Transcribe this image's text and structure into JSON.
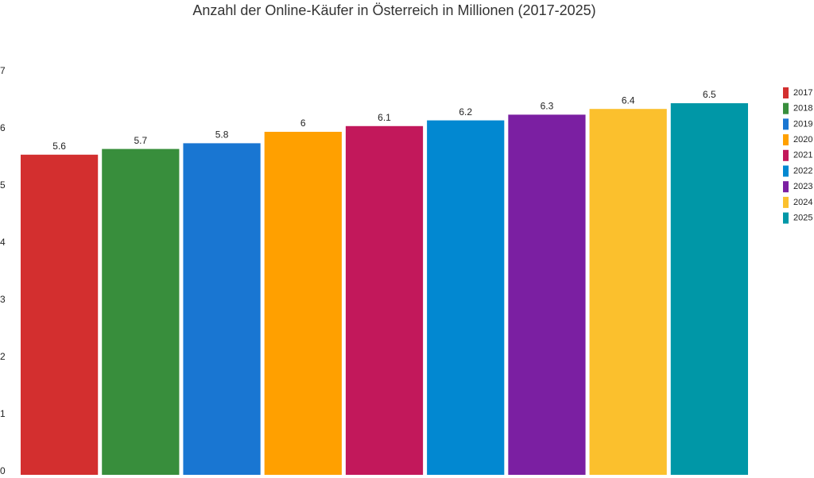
{
  "chart_data": {
    "type": "bar",
    "title": "Anzahl der Online-Käufer in Österreich in Millionen (2017-2025)",
    "series": [
      {
        "name": "2017",
        "color": "#d32f2f",
        "values": [
          5.6
        ]
      },
      {
        "name": "2018",
        "color": "#388e3c",
        "values": [
          5.7
        ]
      },
      {
        "name": "2019",
        "color": "#1976d2",
        "values": [
          5.8
        ]
      },
      {
        "name": "2020",
        "color": "#ffa000",
        "values": [
          6
        ]
      },
      {
        "name": "2021",
        "color": "#c2185b",
        "values": [
          6.1
        ]
      },
      {
        "name": "2022",
        "color": "#0288d1",
        "values": [
          6.2
        ]
      },
      {
        "name": "2023",
        "color": "#7b1fa2",
        "values": [
          6.3
        ]
      },
      {
        "name": "2024",
        "color": "#fbc02d",
        "values": [
          6.4
        ]
      },
      {
        "name": "2025",
        "color": "#0097a7",
        "values": [
          6.5
        ]
      }
    ],
    "ylim": [
      0,
      7
    ],
    "yticks": [
      0,
      1,
      2,
      3,
      4,
      5,
      6,
      7
    ],
    "grid": false,
    "legend": "right"
  }
}
